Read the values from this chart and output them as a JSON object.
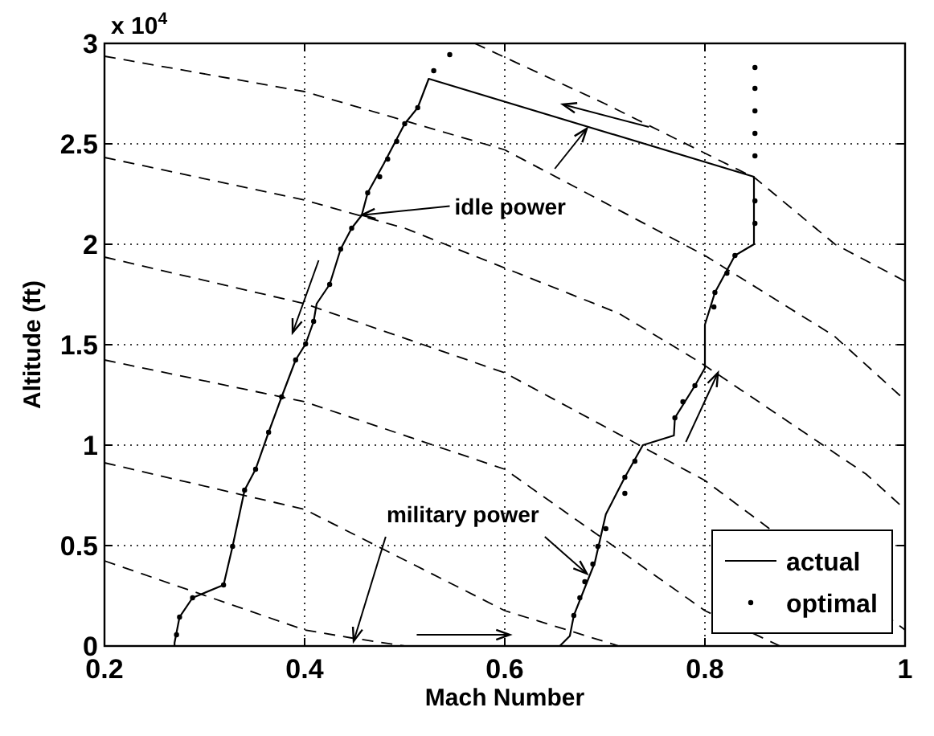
{
  "chart_data": {
    "type": "line",
    "xlabel": "Mach Number",
    "ylabel": "Altitude (ft)",
    "xlim": [
      0.2,
      1
    ],
    "xticks": [
      0.2,
      0.4,
      0.6,
      0.8,
      1
    ],
    "ylim": [
      0,
      3
    ],
    "yticks": [
      0,
      0.5,
      1,
      1.5,
      2,
      2.5,
      3
    ],
    "grid": true,
    "legend": "bottom right",
    "annotations": [
      "x 10$^{4}$",
      {
        "text": "idle power",
        "x": 0.457,
        "y": 2.145
      },
      {
        "text": "military power",
        "x": 0.449,
        "y": 0.024
      }
    ],
    "series": [
      {
        "name": "actual",
        "color": "#000000",
        "line_style": "solid",
        "x": [
          0.256,
          0.5,
          0.655,
          0.665,
          0.669,
          0.69,
          0.701,
          0.72,
          0.738,
          0.769,
          0.77,
          0.79,
          0.8,
          0.8,
          0.81,
          0.83,
          0.849,
          0.849,
          0.849,
          0.524,
          0.513,
          0.5,
          0.479,
          0.463,
          0.457,
          0.447,
          0.436,
          0.425,
          0.412,
          0.409,
          0.401,
          0.391,
          0.377,
          0.364,
          0.351,
          0.34,
          0.328,
          0.319,
          0.288,
          0.275,
          0.27,
          0.27
        ],
        "values": [
          0,
          0,
          0,
          0.05,
          0.152,
          0.416,
          0.656,
          0.84,
          1,
          1.048,
          1.136,
          1.296,
          1.384,
          1.6,
          1.76,
          1.944,
          2,
          2.024,
          2.336,
          2.824,
          2.68,
          2.6,
          2.4,
          2.256,
          2.144,
          2.08,
          1.976,
          1.8,
          1.704,
          1.616,
          1.504,
          1.424,
          1.24,
          1.064,
          0.88,
          0.776,
          0.496,
          0.304,
          0.24,
          0.144,
          0.016,
          0
        ]
      },
      {
        "type": "scatter",
        "name": "optimal",
        "color": "#000000",
        "marker": "circle",
        "x": [
          0.272,
          0.275,
          0.288,
          0.319,
          0.328,
          0.34,
          0.351,
          0.364,
          0.377,
          0.391,
          0.401,
          0.409,
          0.425,
          0.436,
          0.447,
          0.463,
          0.475,
          0.483,
          0.492,
          0.5,
          0.513,
          0.529,
          0.545,
          0.669,
          0.675,
          0.68,
          0.688,
          0.693,
          0.701,
          0.72,
          0.72,
          0.73,
          0.77,
          0.778,
          0.79,
          0.809,
          0.81,
          0.822,
          0.83,
          0.85,
          0.85,
          0.85,
          0.85,
          0.85,
          0.85,
          0.85
        ],
        "values": [
          0.056,
          0.144,
          0.24,
          0.304,
          0.496,
          0.776,
          0.88,
          1.064,
          1.24,
          1.424,
          1.504,
          1.616,
          1.8,
          1.976,
          2.08,
          2.256,
          2.336,
          2.424,
          2.512,
          2.6,
          2.68,
          2.864,
          2.944,
          0.152,
          0.24,
          0.32,
          0.408,
          0.496,
          0.584,
          0.76,
          0.84,
          0.92,
          1.136,
          1.216,
          1.296,
          1.688,
          1.76,
          1.856,
          1.944,
          2.104,
          2.216,
          2.44,
          2.552,
          2.664,
          2.776,
          2.88
        ]
      },
      {
        "type": "line",
        "color": "#000000",
        "line_style": "dashed",
        "x": [
          0.57,
          0.7,
          0.85,
          0.93,
          1
        ],
        "values": [
          3,
          2.7,
          2.33,
          2,
          1.816
        ]
      },
      {
        "type": "line",
        "color": "#000000",
        "line_style": "dashed",
        "x": [
          0.2,
          0.4,
          0.6,
          0.8,
          0.929,
          1
        ],
        "values": [
          2.936,
          2.76,
          2.47,
          1.944,
          1.544,
          1.224
        ]
      },
      {
        "type": "line",
        "color": "#000000",
        "line_style": "dashed",
        "x": [
          0.2,
          0.4,
          0.5,
          0.714,
          0.794,
          0.961,
          1
        ],
        "values": [
          2.432,
          2.22,
          2.08,
          1.656,
          1.416,
          0.856,
          0.68
        ]
      },
      {
        "type": "line",
        "color": "#000000",
        "line_style": "dashed",
        "x": [
          0.2,
          0.4,
          0.6,
          0.8,
          1
        ],
        "values": [
          1.936,
          1.704,
          1.36,
          0.824,
          0.08
        ]
      },
      {
        "type": "line",
        "color": "#000000",
        "line_style": "dashed",
        "x": [
          0.2,
          0.4,
          0.6,
          0.8,
          0.875
        ],
        "values": [
          1.424,
          1.216,
          0.88,
          0.176,
          0
        ]
      },
      {
        "type": "line",
        "color": "#000000",
        "line_style": "dashed",
        "x": [
          0.2,
          0.4,
          0.6,
          0.714
        ],
        "values": [
          0.912,
          0.68,
          0.176,
          0
        ]
      },
      {
        "type": "line",
        "color": "#000000",
        "line_style": "dashed",
        "x": [
          0.2,
          0.4,
          0.447,
          0.5
        ],
        "values": [
          0.424,
          0.08,
          0.04,
          0
        ]
      }
    ]
  }
}
